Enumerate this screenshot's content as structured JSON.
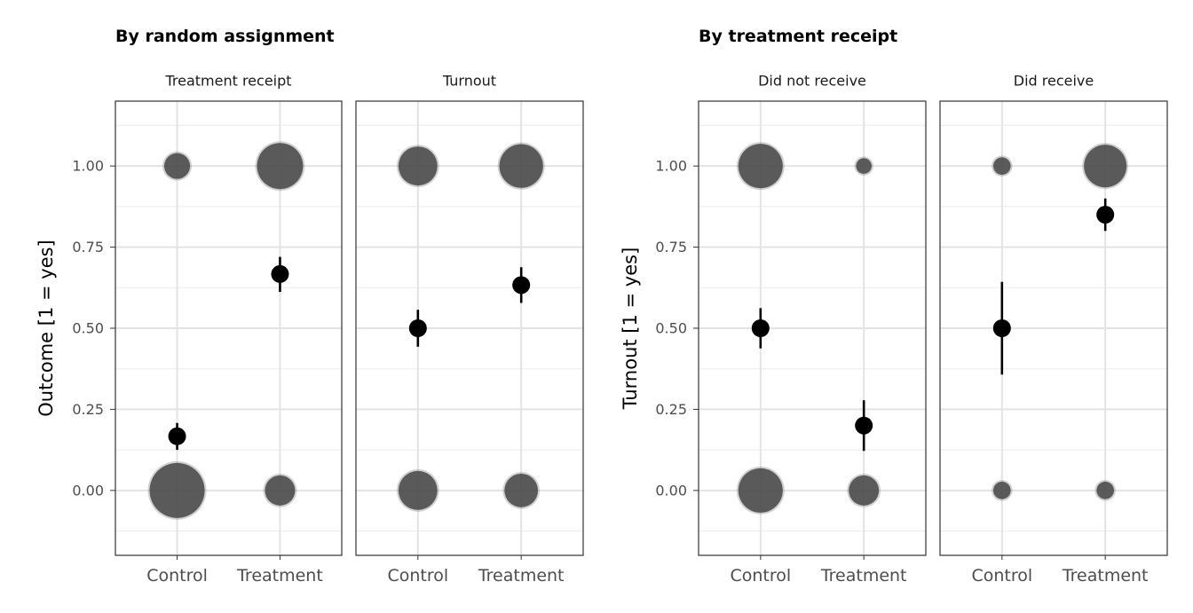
{
  "chart_data": [
    {
      "type": "scatter",
      "title": "By random assignment",
      "ylabel": "Outcome [1 = yes]",
      "xlabel": "",
      "ylim": [
        -0.2,
        1.2
      ],
      "y_ticks": [
        0.0,
        0.25,
        0.5,
        0.75,
        1.0
      ],
      "y_tick_labels": [
        "0.00",
        "0.25",
        "0.50",
        "0.75",
        "1.00"
      ],
      "categories": [
        "Control",
        "Treatment"
      ],
      "grid": true,
      "panels": [
        {
          "label": "Treatment receipt",
          "bubbles": [
            {
              "x": "Control",
              "y": 1,
              "relative_size": 0.22
            },
            {
              "x": "Control",
              "y": 0,
              "relative_size": 1.0
            },
            {
              "x": "Treatment",
              "y": 1,
              "relative_size": 0.7
            },
            {
              "x": "Treatment",
              "y": 0,
              "relative_size": 0.3
            }
          ],
          "means": [
            {
              "x": "Control",
              "y": 0.167,
              "low": 0.125,
              "high": 0.208
            },
            {
              "x": "Treatment",
              "y": 0.667,
              "low": 0.612,
              "high": 0.72
            }
          ]
        },
        {
          "label": "Turnout",
          "bubbles": [
            {
              "x": "Control",
              "y": 1,
              "relative_size": 0.5
            },
            {
              "x": "Control",
              "y": 0,
              "relative_size": 0.5
            },
            {
              "x": "Treatment",
              "y": 1,
              "relative_size": 0.63
            },
            {
              "x": "Treatment",
              "y": 0,
              "relative_size": 0.37
            }
          ],
          "means": [
            {
              "x": "Control",
              "y": 0.5,
              "low": 0.443,
              "high": 0.557
            },
            {
              "x": "Treatment",
              "y": 0.633,
              "low": 0.578,
              "high": 0.688
            }
          ]
        }
      ]
    },
    {
      "type": "scatter",
      "title": "By treatment receipt",
      "ylabel": "Turnout [1 = yes]",
      "xlabel": "",
      "ylim": [
        -0.2,
        1.2
      ],
      "y_ticks": [
        0.0,
        0.25,
        0.5,
        0.75,
        1.0
      ],
      "y_tick_labels": [
        "0.00",
        "0.25",
        "0.50",
        "0.75",
        "1.00"
      ],
      "categories": [
        "Control",
        "Treatment"
      ],
      "grid": true,
      "panels": [
        {
          "label": "Did not receive",
          "bubbles": [
            {
              "x": "Control",
              "y": 1,
              "relative_size": 0.65
            },
            {
              "x": "Control",
              "y": 0,
              "relative_size": 0.65
            },
            {
              "x": "Treatment",
              "y": 1,
              "relative_size": 0.08
            },
            {
              "x": "Treatment",
              "y": 0,
              "relative_size": 0.3
            }
          ],
          "means": [
            {
              "x": "Control",
              "y": 0.5,
              "low": 0.438,
              "high": 0.562
            },
            {
              "x": "Treatment",
              "y": 0.2,
              "low": 0.122,
              "high": 0.278
            }
          ]
        },
        {
          "label": "Did receive",
          "bubbles": [
            {
              "x": "Control",
              "y": 1,
              "relative_size": 0.1
            },
            {
              "x": "Control",
              "y": 0,
              "relative_size": 0.1
            },
            {
              "x": "Treatment",
              "y": 1,
              "relative_size": 0.6
            },
            {
              "x": "Treatment",
              "y": 0,
              "relative_size": 0.1
            }
          ],
          "means": [
            {
              "x": "Control",
              "y": 0.5,
              "low": 0.357,
              "high": 0.643
            },
            {
              "x": "Treatment",
              "y": 0.85,
              "low": 0.8,
              "high": 0.9
            }
          ]
        }
      ]
    }
  ]
}
